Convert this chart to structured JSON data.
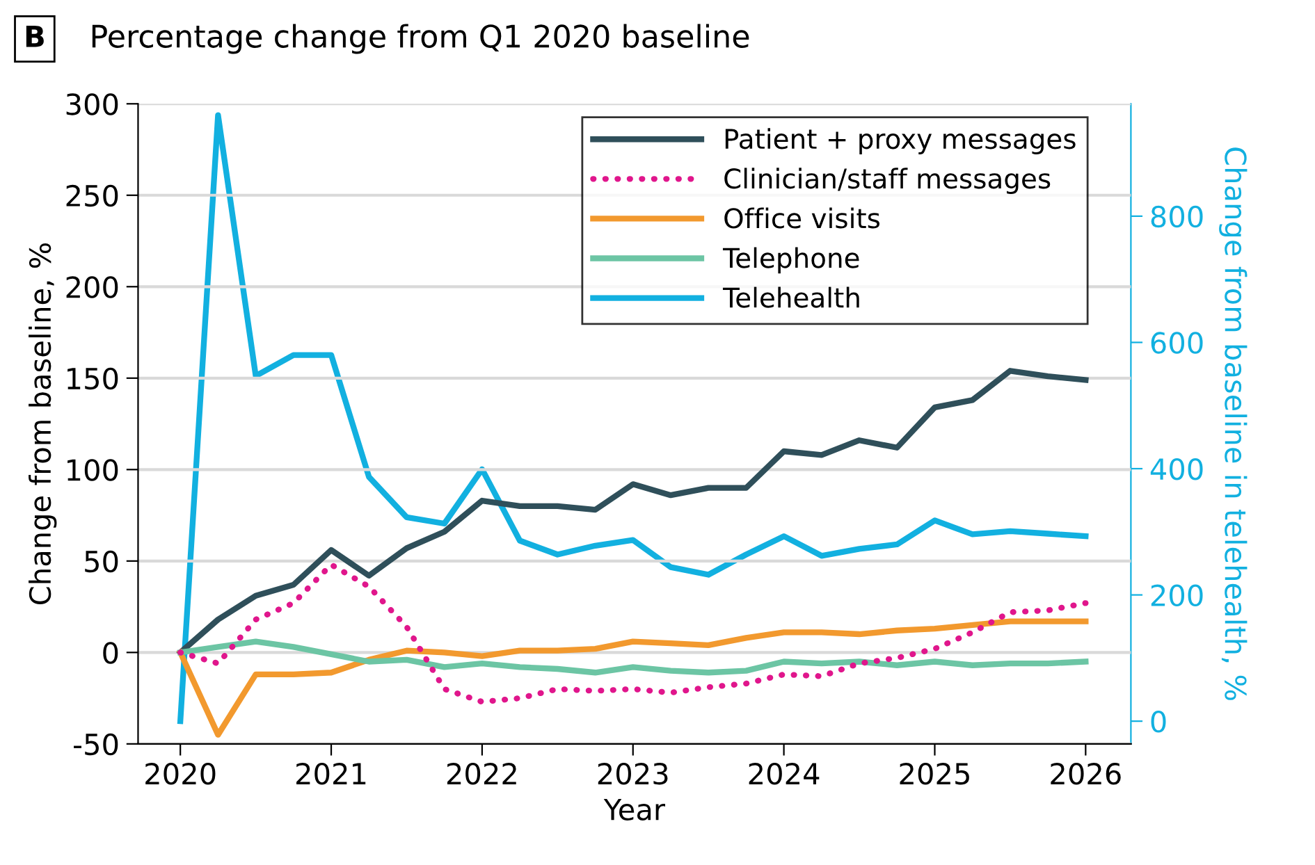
{
  "chart_data": {
    "type": "line",
    "title": "Percentage change from Q1 2020 baseline",
    "annotations": [
      "B"
    ],
    "xlabel": "Year",
    "ylabel": "Change from baseline, %",
    "y2label": "Change from baseline in telehealth, %",
    "x": [
      2020,
      2020.25,
      2020.5,
      2020.75,
      2021,
      2021.25,
      2021.5,
      2021.75,
      2022,
      2022.25,
      2022.5,
      2022.75,
      2023,
      2023.25,
      2023.5,
      2023.75,
      2024,
      2024.25,
      2024.5,
      2024.75,
      2025,
      2025.25,
      2025.5,
      2025.75,
      2026
    ],
    "xlim": [
      2019.72,
      2026.3
    ],
    "xticks": [
      2020,
      2021,
      2022,
      2023,
      2024,
      2025,
      2026
    ],
    "ylim": [
      -50,
      300
    ],
    "yticks": [
      -50,
      0,
      50,
      100,
      150,
      200,
      250,
      300
    ],
    "y2lim": [
      -36,
      978
    ],
    "y2ticks": [
      0,
      200,
      400,
      600,
      800
    ],
    "grid": "y",
    "legend": "top right",
    "series": [
      {
        "name": "Patient + proxy messages",
        "color": "#2f4f5a",
        "line_style": "solid",
        "values": [
          0,
          18,
          31,
          37,
          56,
          42,
          57,
          66,
          83,
          80,
          80,
          78,
          92,
          86,
          90,
          90,
          110,
          108,
          116,
          112,
          134,
          138,
          154,
          151,
          149
        ]
      },
      {
        "name": "Clinician/staff messages",
        "color": "#e0168c",
        "line_style": "dotted",
        "values": [
          0,
          -6,
          18,
          27,
          48,
          36,
          14,
          -20,
          -27,
          -25,
          -20,
          -21,
          -20,
          -22,
          -19,
          -17,
          -12,
          -13,
          -6,
          -3,
          2,
          11,
          22,
          23,
          27
        ]
      },
      {
        "name": "Office visits",
        "color": "#f2992e",
        "line_style": "solid",
        "values": [
          0,
          -45,
          -12,
          -12,
          -11,
          -4,
          1,
          0,
          -2,
          1,
          1,
          2,
          6,
          5,
          4,
          8,
          11,
          11,
          10,
          12,
          13,
          15,
          17,
          17,
          17
        ]
      },
      {
        "name": "Telephone",
        "color": "#6cc5a4",
        "line_style": "solid",
        "values": [
          0,
          3,
          6,
          3,
          -1,
          -5,
          -4,
          -8,
          -6,
          -8,
          -9,
          -11,
          -8,
          -10,
          -11,
          -10,
          -5,
          -6,
          -5,
          -7,
          -5,
          -7,
          -6,
          -6,
          -5
        ]
      },
      {
        "name": "Telehealth",
        "color": "#12b0e0",
        "line_style": "solid",
        "axis": "y2",
        "values": [
          0,
          960,
          547,
          580,
          580,
          387,
          323,
          313,
          399,
          286,
          264,
          278,
          287,
          244,
          232,
          264,
          293,
          262,
          273,
          280,
          318,
          296,
          301,
          297,
          293
        ]
      }
    ]
  }
}
